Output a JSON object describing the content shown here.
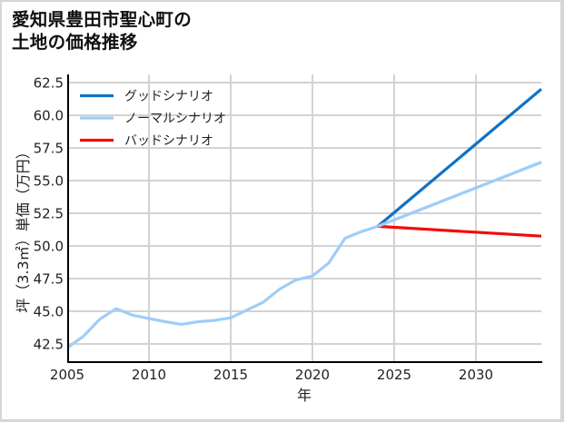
{
  "title": {
    "line1": "愛知県豊田市聖心町の",
    "line2": "土地の価格推移"
  },
  "chart_data": {
    "type": "line",
    "title": "愛知県豊田市聖心町の土地の価格推移",
    "xlabel": "年",
    "ylabel": "坪（3.3㎡）単価（万円）",
    "xlim": [
      2005,
      2034
    ],
    "ylim": [
      41.1,
      63.1
    ],
    "xticks": [
      2005,
      2010,
      2015,
      2020,
      2025,
      2030
    ],
    "xtick_labels": [
      "2005",
      "2010",
      "2015",
      "2020",
      "2025",
      "2030"
    ],
    "yticks": [
      42.5,
      45.0,
      47.5,
      50.0,
      52.5,
      55.0,
      57.5,
      60.0,
      62.5
    ],
    "ytick_labels": [
      "42.5",
      "45.0",
      "47.5",
      "50.0",
      "52.5",
      "55.0",
      "57.5",
      "60.0",
      "62.5"
    ],
    "grid": true,
    "legend_position": "upper left",
    "series": [
      {
        "name": "グッドシナリオ",
        "color": "#0f72c5",
        "x": [
          2024,
          2034
        ],
        "values": [
          51.5,
          62.0
        ]
      },
      {
        "name": "ノーマルシナリオ",
        "color": "#9fcdf7",
        "x": [
          2005,
          2006,
          2007,
          2008,
          2009,
          2010,
          2011,
          2012,
          2013,
          2014,
          2015,
          2016,
          2017,
          2018,
          2019,
          2020,
          2021,
          2022,
          2023,
          2024,
          2034
        ],
        "values": [
          42.2,
          43.1,
          44.4,
          45.2,
          44.7,
          44.45,
          44.2,
          44.0,
          44.2,
          44.3,
          44.5,
          45.1,
          45.7,
          46.7,
          47.4,
          47.7,
          48.7,
          50.6,
          51.1,
          51.5,
          56.4
        ]
      },
      {
        "name": "バッドシナリオ",
        "color": "#f40a0a",
        "x": [
          2024,
          2034
        ],
        "values": [
          51.5,
          50.75
        ]
      }
    ]
  },
  "colors": {
    "grid": "#d3d3d3",
    "axis": "#000000",
    "frame": "#d6d6d6"
  }
}
